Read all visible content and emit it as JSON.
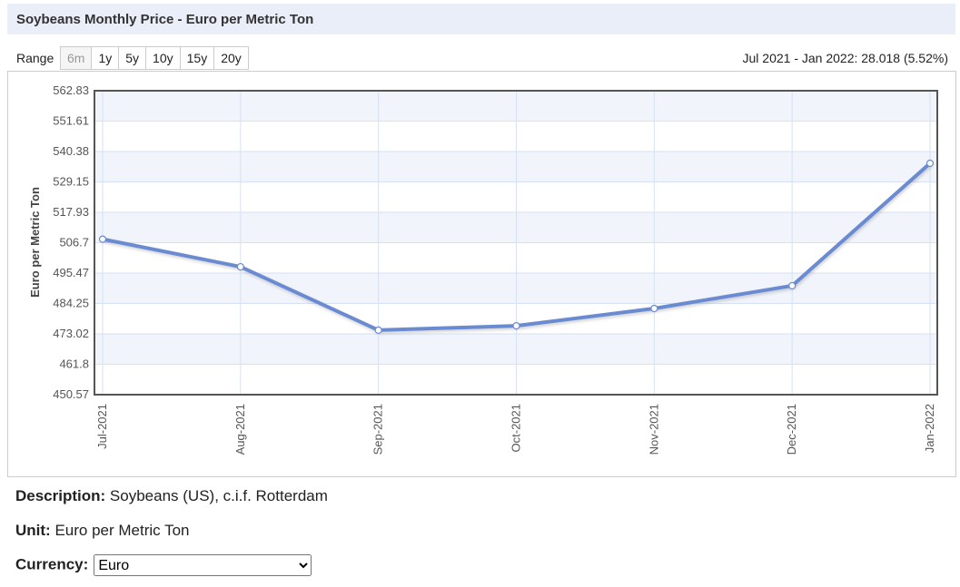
{
  "header": {
    "title": "Soybeans Monthly Price - Euro per Metric Ton"
  },
  "range": {
    "label": "Range",
    "buttons": [
      "6m",
      "1y",
      "5y",
      "10y",
      "15y",
      "20y"
    ],
    "active": "6m",
    "summary": "Jul 2021 - Jan 2022: 28.018 (5.52%)"
  },
  "chart_data": {
    "type": "line",
    "y_label": "Euro per Metric Ton",
    "categories": [
      "Jul-2021",
      "Aug-2021",
      "Sep-2021",
      "Oct-2021",
      "Nov-2021",
      "Dec-2021",
      "Jan-2022"
    ],
    "values": [
      508.0,
      497.8,
      474.4,
      476.0,
      482.4,
      490.8,
      536.02
    ],
    "color": "#6a8bd1",
    "ylim": [
      450.57,
      562.83
    ],
    "yticks": [
      450.57,
      461.8,
      473.02,
      484.25,
      495.47,
      506.7,
      517.93,
      529.15,
      540.38,
      551.61,
      562.83
    ],
    "grid": true
  },
  "details": {
    "description_label": "Description:",
    "description": "Soybeans (US), c.i.f. Rotterdam",
    "unit_label": "Unit:",
    "unit": "Euro per Metric Ton",
    "currency_label": "Currency:",
    "currency": "Euro"
  }
}
